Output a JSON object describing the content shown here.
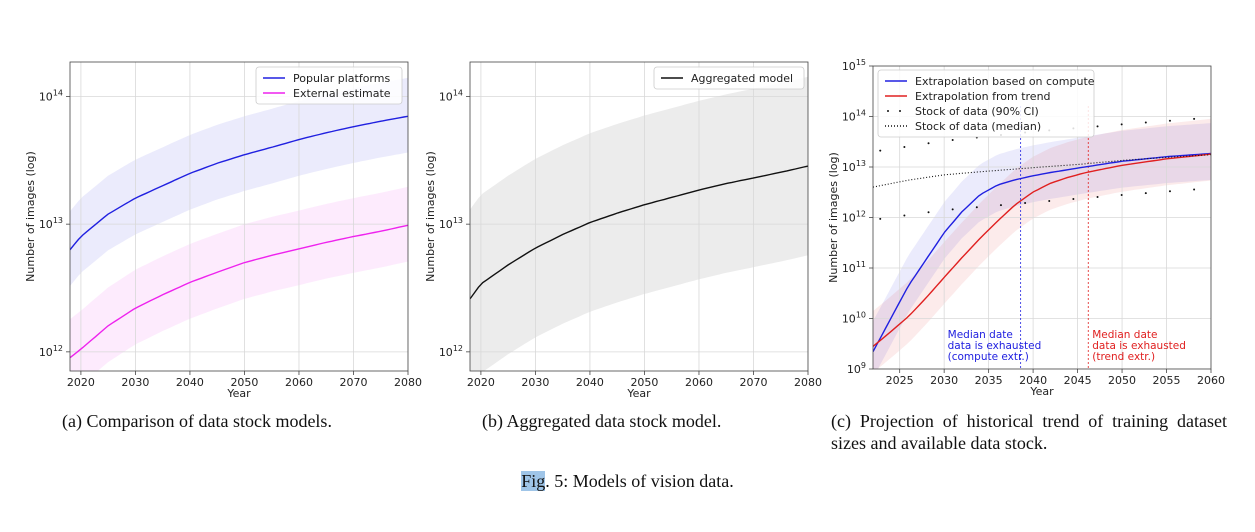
{
  "figure_caption": {
    "label": "Fig",
    "rest": ". 5: Models of vision data."
  },
  "colors": {
    "blue": "#2020e0",
    "magenta": "#ee22ee",
    "red": "#e02020",
    "black": "#111111",
    "gray_band": "#ececec"
  },
  "chart_data": [
    {
      "type": "line",
      "id": "a",
      "caption": "(a) Comparison of data stock models.",
      "xlabel": "Year",
      "ylabel": "Number of images (log)",
      "xlim": [
        2018,
        2080
      ],
      "ylim_log10": [
        11.85,
        14.27
      ],
      "xticks": [
        2020,
        2030,
        2040,
        2050,
        2060,
        2070,
        2080
      ],
      "ytick_labels": [
        {
          "exp": 12,
          "text": "10",
          "sup": "12"
        },
        {
          "exp": 13,
          "text": "10",
          "sup": "13"
        },
        {
          "exp": 14,
          "text": "10",
          "sup": "14"
        }
      ],
      "grid": true,
      "legend_position": "top-right",
      "series": [
        {
          "name": "Popular platforms",
          "color": "#2020e0",
          "x": [
            2018,
            2020,
            2025,
            2030,
            2035,
            2040,
            2045,
            2050,
            2055,
            2060,
            2065,
            2070,
            2075,
            2080
          ],
          "y": [
            6300000000000.0,
            8000000000000.0,
            12000000000000.0,
            16000000000000.0,
            20000000000000.0,
            25000000000000.0,
            30000000000000.0,
            35000000000000.0,
            40000000000000.0,
            46000000000000.0,
            52000000000000.0,
            58000000000000.0,
            64000000000000.0,
            70000000000000.0
          ],
          "band_lower_factor": 0.52,
          "band_upper_factor": 2.0
        },
        {
          "name": "External estimate",
          "color": "#ee22ee",
          "x": [
            2018,
            2020,
            2025,
            2030,
            2035,
            2040,
            2045,
            2050,
            2055,
            2060,
            2065,
            2070,
            2075,
            2080
          ],
          "y": [
            900000000000.0,
            1050000000000.0,
            1600000000000.0,
            2200000000000.0,
            2800000000000.0,
            3500000000000.0,
            4200000000000.0,
            5000000000000.0,
            5700000000000.0,
            6400000000000.0,
            7200000000000.0,
            8000000000000.0,
            8800000000000.0,
            9800000000000.0
          ],
          "band_lower_factor": 0.52,
          "band_upper_factor": 2.0
        }
      ]
    },
    {
      "type": "line",
      "id": "b",
      "caption": "(b) Aggregated data stock model.",
      "xlabel": "Year",
      "ylabel": "Number of images (log)",
      "xlim": [
        2018,
        2080
      ],
      "ylim_log10": [
        11.85,
        14.27
      ],
      "xticks": [
        2020,
        2030,
        2040,
        2050,
        2060,
        2070,
        2080
      ],
      "ytick_labels": [
        {
          "exp": 12,
          "text": "10",
          "sup": "12"
        },
        {
          "exp": 13,
          "text": "10",
          "sup": "13"
        },
        {
          "exp": 14,
          "text": "10",
          "sup": "14"
        }
      ],
      "grid": true,
      "legend_position": "top-right",
      "series": [
        {
          "name": "Aggregated model",
          "color": "#111111",
          "x": [
            2018,
            2020,
            2025,
            2030,
            2035,
            2040,
            2045,
            2050,
            2055,
            2060,
            2065,
            2070,
            2075,
            2080
          ],
          "y": [
            2600000000000.0,
            3400000000000.0,
            4800000000000.0,
            6500000000000.0,
            8300000000000.0,
            10300000000000.0,
            12200000000000.0,
            14200000000000.0,
            16200000000000.0,
            18500000000000.0,
            20800000000000.0,
            23000000000000.0,
            25500000000000.0,
            28500000000000.0
          ],
          "band_lower_factor": 0.2,
          "band_upper_factor": 5.0
        }
      ]
    },
    {
      "type": "line",
      "id": "c",
      "caption": "(c) Projection of historical trend of training dataset sizes and available data stock.",
      "xlabel": "Year",
      "ylabel": "Number of images (log)",
      "xlim": [
        2022,
        2060
      ],
      "ylim_log10": [
        9,
        15
      ],
      "xticks": [
        2025,
        2030,
        2035,
        2040,
        2045,
        2050,
        2055,
        2060
      ],
      "ytick_labels": [
        {
          "exp": 9,
          "text": "10",
          "sup": "9"
        },
        {
          "exp": 10,
          "text": "10",
          "sup": "10"
        },
        {
          "exp": 11,
          "text": "10",
          "sup": "11"
        },
        {
          "exp": 12,
          "text": "10",
          "sup": "12"
        },
        {
          "exp": 13,
          "text": "10",
          "sup": "13"
        },
        {
          "exp": 14,
          "text": "10",
          "sup": "14"
        },
        {
          "exp": 15,
          "text": "10",
          "sup": "15"
        }
      ],
      "grid": true,
      "legend_position": "top-left",
      "series": [
        {
          "name": "Extrapolation based on compute",
          "color": "#2020e0",
          "style": "solid",
          "x": [
            2022,
            2024,
            2026,
            2028,
            2030,
            2032,
            2034,
            2036,
            2038,
            2040,
            2042,
            2045,
            2048,
            2050,
            2055,
            2060
          ],
          "y": [
            2200000000.0,
            10000000000.0,
            45000000000.0,
            150000000000.0,
            500000000000.0,
            1300000000000.0,
            2800000000000.0,
            4400000000000.0,
            5600000000000.0,
            6700000000000.0,
            7800000000000.0,
            9500000000000.0,
            11500000000000.0,
            13000000000000.0,
            16000000000000.0,
            18500000000000.0
          ],
          "band_lower_factor": 0.3,
          "band_upper_factor": 4.0
        },
        {
          "name": "Extrapolation from trend",
          "color": "#e02020",
          "style": "solid",
          "x": [
            2022,
            2024,
            2026,
            2028,
            2030,
            2032,
            2034,
            2036,
            2038,
            2040,
            2042,
            2044,
            2046,
            2048,
            2050,
            2055,
            2060
          ],
          "y": [
            2800000000.0,
            5500000000.0,
            11000000000.0,
            26000000000.0,
            65000000000.0,
            160000000000.0,
            380000000000.0,
            850000000000.0,
            1800000000000.0,
            3200000000000.0,
            4800000000000.0,
            6300000000000.0,
            7800000000000.0,
            9200000000000.0,
            10800000000000.0,
            14500000000000.0,
            18000000000000.0
          ],
          "band_lower_factor": 0.3,
          "band_upper_factor": 5.0
        },
        {
          "name": "Stock of data (90% CI)",
          "color": "#111111",
          "style": "sparse-dots",
          "x": [
            2022,
            2030,
            2040,
            2050,
            2060
          ],
          "y_lower": [
            900000000000.0,
            1400000000000.0,
            2000000000000.0,
            2800000000000.0,
            3800000000000.0
          ],
          "y_upper": [
            20000000000000.0,
            33000000000000.0,
            50000000000000.0,
            70000000000000.0,
            95000000000000.0
          ]
        },
        {
          "name": "Stock of data (median)",
          "color": "#111111",
          "style": "dotted",
          "x": [
            2022,
            2026,
            2030,
            2035,
            2040,
            2045,
            2050,
            2055,
            2060
          ],
          "y": [
            4000000000000.0,
            5500000000000.0,
            7000000000000.0,
            8300000000000.0,
            9700000000000.0,
            11200000000000.0,
            13500000000000.0,
            15500000000000.0,
            17500000000000.0
          ]
        }
      ],
      "annotations": [
        {
          "x_line": 2038.6,
          "color": "#2020e0",
          "lines": [
            "Median date",
            "data is exhausted",
            "(compute extr.)"
          ]
        },
        {
          "x_line": 2046.2,
          "color": "#e02020",
          "lines": [
            "Median date",
            "data is exhausted",
            "(trend extr.)"
          ]
        }
      ]
    }
  ]
}
